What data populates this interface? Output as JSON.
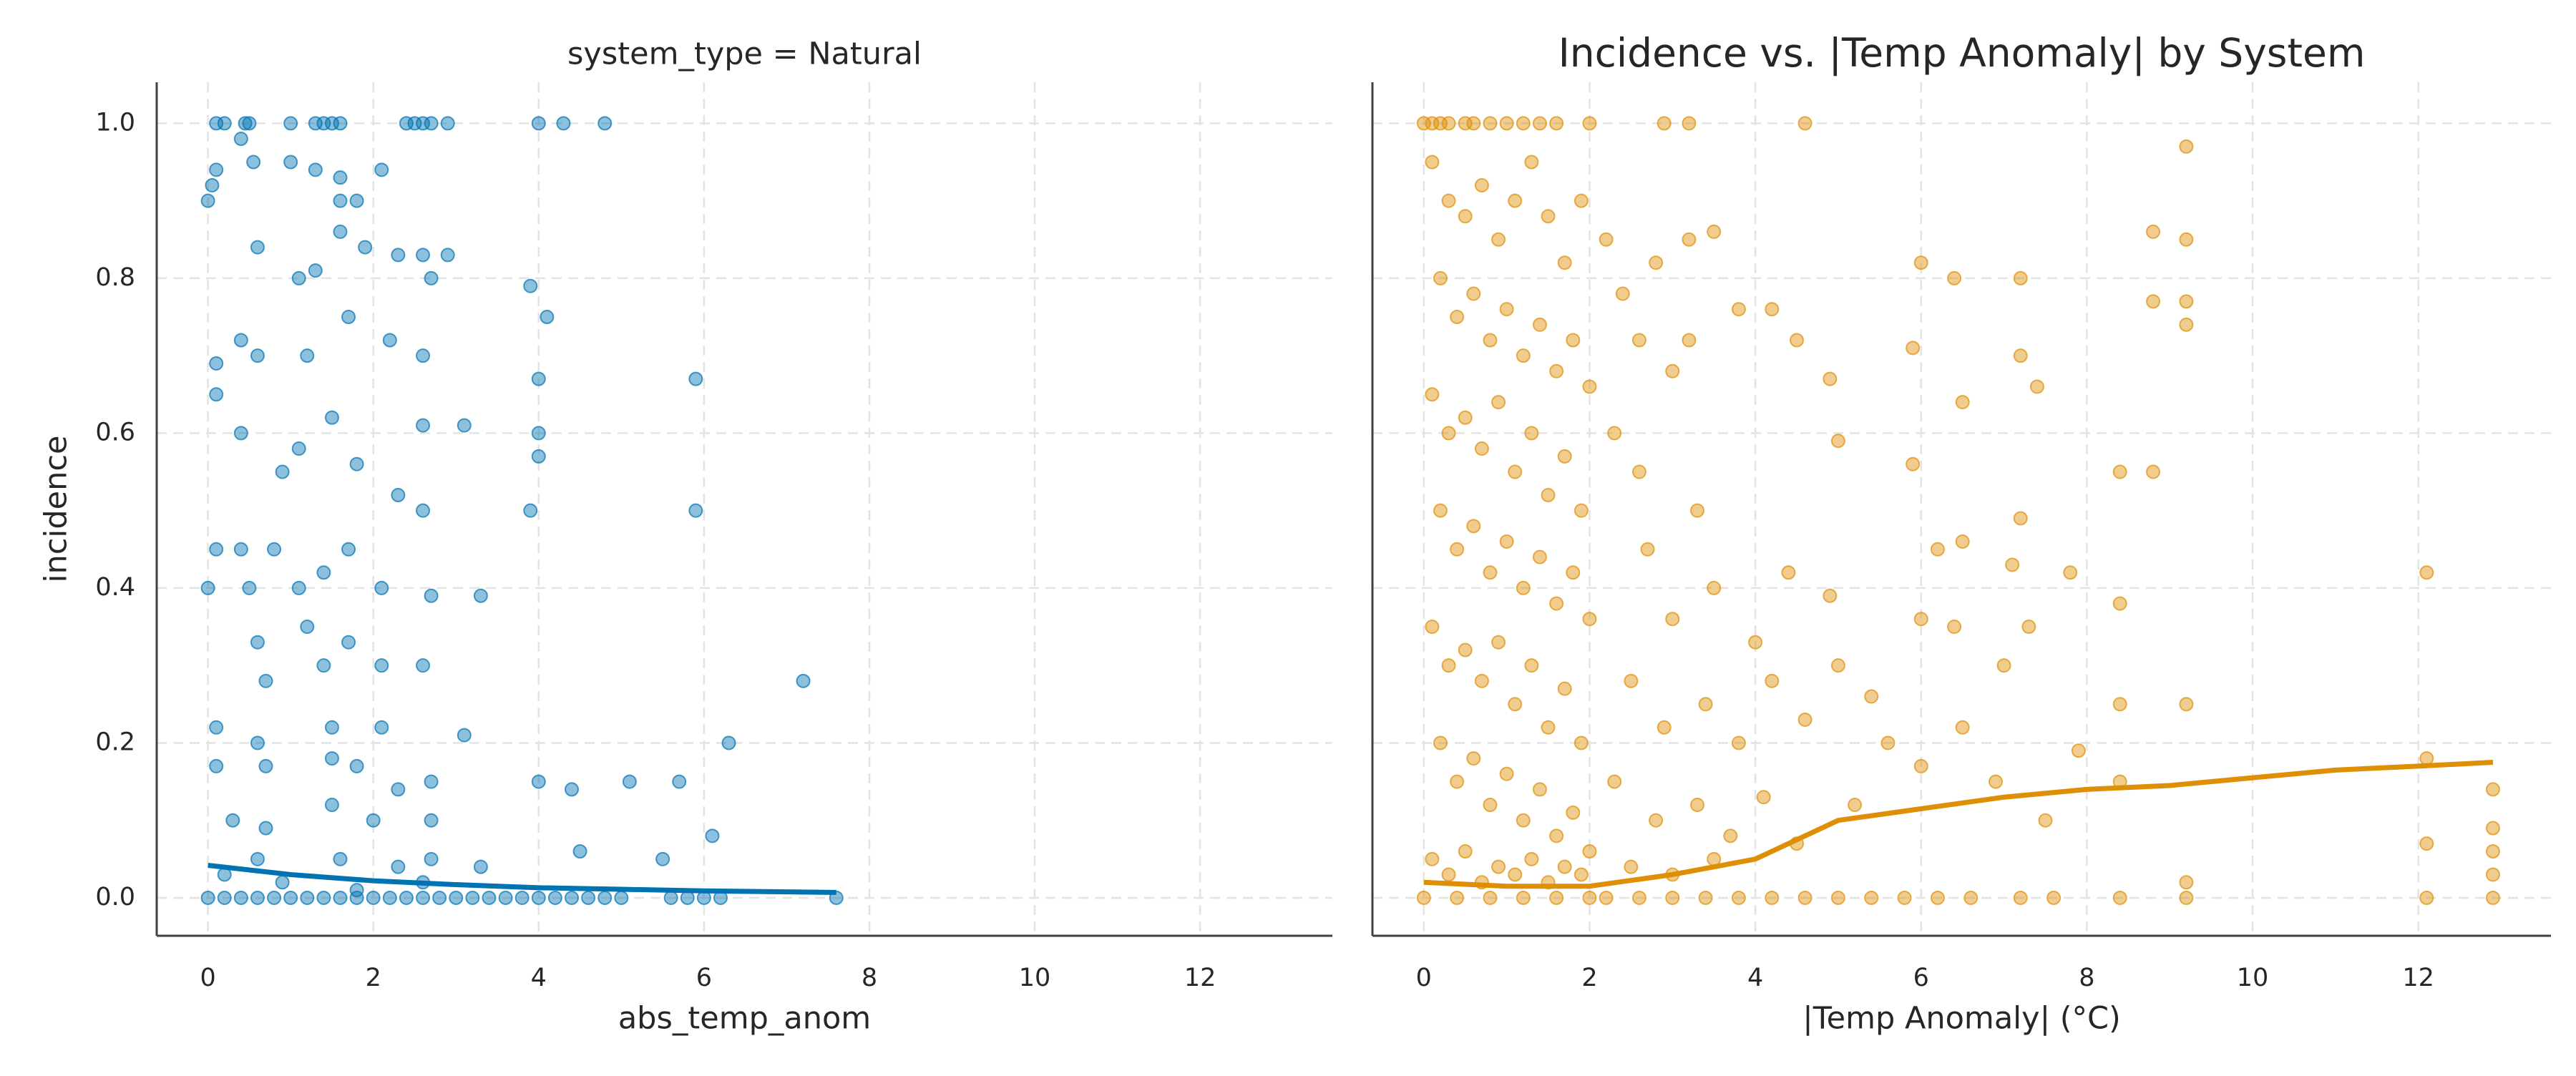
{
  "chart_data": [
    {
      "type": "scatter",
      "title": "system_type = Natural",
      "x_label": "abs_temp_anom",
      "y_label": "incidence",
      "xlim": [
        -0.62,
        13.6
      ],
      "ylim": [
        -0.049,
        1.053
      ],
      "xticks": [
        0,
        2,
        4,
        6,
        8,
        10,
        12
      ],
      "yticks": [
        {
          "value": 0,
          "label": "0.0"
        },
        {
          "value": 0.2,
          "label": "0.2"
        },
        {
          "value": 0.4,
          "label": "0.4"
        },
        {
          "value": 0.6,
          "label": "0.6"
        },
        {
          "value": 0.8,
          "label": "0.8"
        },
        {
          "value": 1,
          "label": "1.0"
        }
      ],
      "grid": true,
      "ytick_labels": true,
      "series": [
        {
          "type": "scatter",
          "color": "#0173b2",
          "x": [
            0.1,
            0.2,
            0.45,
            0.5,
            1.0,
            1.3,
            1.4,
            1.5,
            1.6,
            2.4,
            2.5,
            2.6,
            2.7,
            2.9,
            4.0,
            4.3,
            4.8,
            0,
            0.1,
            0.05,
            0.4,
            0.55,
            1.0,
            1.3,
            1.6,
            2.1,
            1.6,
            1.8,
            0.6,
            1.6,
            1.9,
            2.3,
            2.6,
            2.9,
            2.7,
            1.1,
            1.3,
            3.9,
            0.1,
            0.1,
            0.4,
            0.6,
            1.2,
            1.7,
            2.2,
            2.6,
            4.1,
            4.0,
            5.9,
            0.9,
            1.1,
            1.5,
            1.8,
            2.6,
            3.1,
            4.0,
            4.0,
            0.4,
            0.1,
            0.4,
            0.8,
            1.4,
            1.7,
            2.3,
            2.6,
            3.9,
            5.9,
            0,
            0.5,
            1.1,
            2.1,
            2.7,
            3.3,
            0.6,
            1.2,
            1.7,
            2.6,
            0.7,
            1.4,
            2.1,
            7.2,
            0.1,
            0.6,
            1.5,
            2.1,
            3.1,
            0.1,
            0.7,
            1.5,
            1.8,
            2.3,
            2.7,
            4.0,
            4.4,
            5.1,
            5.7,
            6.3,
            0.3,
            0.7,
            1.5,
            2.0,
            2.7,
            0.6,
            1.6,
            2.3,
            2.7,
            3.3,
            4.5,
            5.5,
            6.1,
            0.2,
            0.9,
            1.8,
            2.6,
            0,
            0.2,
            0.4,
            0.6,
            0.8,
            1.0,
            1.2,
            1.4,
            1.6,
            1.8,
            2.0,
            2.2,
            2.4,
            2.6,
            2.8,
            3.0,
            3.2,
            3.4,
            3.6,
            3.8,
            4.0,
            4.2,
            4.4,
            4.6,
            4.8,
            5.0,
            5.6,
            5.8,
            6.0,
            6.2,
            7.6
          ],
          "values": [
            1,
            1,
            1,
            1,
            1,
            1,
            1,
            1,
            1,
            1,
            1,
            1,
            1,
            1,
            1,
            1,
            1,
            0.9,
            0.94,
            0.92,
            0.98,
            0.95,
            0.95,
            0.94,
            0.93,
            0.94,
            0.9,
            0.9,
            0.84,
            0.86,
            0.84,
            0.83,
            0.83,
            0.83,
            0.8,
            0.8,
            0.81,
            0.79,
            0.69,
            0.65,
            0.72,
            0.7,
            0.7,
            0.75,
            0.72,
            0.7,
            0.75,
            0.67,
            0.67,
            0.55,
            0.58,
            0.62,
            0.56,
            0.61,
            0.61,
            0.6,
            0.57,
            0.6,
            0.45,
            0.45,
            0.45,
            0.42,
            0.45,
            0.52,
            0.5,
            0.5,
            0.5,
            0.4,
            0.4,
            0.4,
            0.4,
            0.39,
            0.39,
            0.33,
            0.35,
            0.33,
            0.3,
            0.28,
            0.3,
            0.3,
            0.28,
            0.22,
            0.2,
            0.22,
            0.22,
            0.21,
            0.17,
            0.17,
            0.18,
            0.17,
            0.14,
            0.15,
            0.15,
            0.14,
            0.15,
            0.15,
            0.2,
            0.1,
            0.09,
            0.12,
            0.1,
            0.1,
            0.05,
            0.05,
            0.04,
            0.05,
            0.04,
            0.06,
            0.05,
            0.08,
            0.03,
            0.02,
            0.01,
            0.02,
            0,
            0,
            0,
            0,
            0,
            0,
            0,
            0,
            0,
            0,
            0,
            0,
            0,
            0,
            0,
            0,
            0,
            0,
            0,
            0,
            0,
            0,
            0,
            0,
            0,
            0,
            0,
            0,
            0,
            0,
            0
          ]
        },
        {
          "type": "line",
          "color": "#0173b2",
          "x": [
            0,
            1,
            2,
            3,
            4,
            5,
            6,
            7.6
          ],
          "values": [
            0.042,
            0.03,
            0.022,
            0.017,
            0.013,
            0.011,
            0.009,
            0.007
          ]
        }
      ]
    },
    {
      "type": "scatter",
      "title": "Incidence vs. |Temp Anomaly| by System",
      "x_label": "|Temp Anomaly| (°C)",
      "xlim": [
        -0.62,
        13.6
      ],
      "ylim": [
        -0.049,
        1.053
      ],
      "xticks": [
        0,
        2,
        4,
        6,
        8,
        10,
        12
      ],
      "yticks": [
        0,
        0.2,
        0.4,
        0.6,
        0.8,
        1
      ],
      "grid": true,
      "ytick_labels": false,
      "series": [
        {
          "type": "scatter",
          "color": "#de8f05",
          "x": [
            0,
            0.1,
            0.2,
            0.3,
            0.5,
            0.6,
            0.8,
            1.0,
            1.2,
            1.4,
            1.6,
            2.0,
            2.9,
            3.2,
            4.6,
            0.1,
            0.3,
            0.5,
            0.7,
            0.9,
            1.1,
            1.3,
            1.5,
            1.7,
            1.9,
            0.2,
            0.4,
            0.6,
            0.8,
            1.0,
            1.2,
            1.4,
            1.6,
            1.8,
            2.0,
            0.1,
            0.3,
            0.5,
            0.7,
            0.9,
            1.1,
            1.3,
            1.5,
            1.7,
            1.9,
            0.2,
            0.4,
            0.6,
            0.8,
            1.0,
            1.2,
            1.4,
            1.6,
            1.8,
            2.0,
            0.1,
            0.3,
            0.5,
            0.7,
            0.9,
            1.1,
            1.3,
            1.5,
            1.7,
            1.9,
            0.2,
            0.4,
            0.6,
            0.8,
            1.0,
            1.2,
            1.4,
            1.6,
            1.8,
            2.0,
            0.1,
            0.3,
            0.5,
            0.7,
            0.9,
            1.1,
            1.3,
            1.5,
            1.7,
            1.9,
            2.2,
            2.4,
            2.6,
            2.8,
            3.2,
            3.5,
            3.2,
            3.0,
            3.8,
            4.2,
            4.5,
            4.9,
            2.3,
            2.6,
            3.3,
            2.7,
            3.5,
            3.0,
            4.0,
            4.4,
            4.9,
            2.5,
            2.9,
            3.4,
            3.8,
            4.2,
            4.6,
            5.0,
            2.3,
            2.8,
            3.3,
            3.7,
            4.1,
            4.5,
            2.5,
            3.0,
            3.5,
            5.0,
            5.9,
            6.0,
            6.4,
            6.5,
            7.2,
            7.2,
            7.4,
            5.9,
            6.2,
            6.5,
            7.1,
            7.2,
            7.8,
            5.4,
            6.0,
            6.4,
            7.0,
            7.3,
            5.2,
            5.6,
            6.0,
            6.5,
            6.9,
            7.5,
            7.9,
            8.4,
            8.4,
            8.8,
            8.8,
            8.8,
            8.4,
            8.4,
            9.2,
            9.2,
            9.2,
            9.2,
            9.2,
            9.2,
            12.1,
            12.1,
            12.1,
            12.9,
            12.9,
            12.9,
            12.9,
            2.2,
            2.6,
            3.0,
            3.4,
            3.8,
            4.2,
            4.6,
            5.0,
            5.4,
            5.8,
            6.2,
            6.6,
            7.2,
            7.6,
            8.4,
            9.2,
            12.1,
            12.9,
            0,
            0.4,
            0.8,
            1.2,
            1.6,
            2.0
          ],
          "values": [
            1,
            1,
            1,
            1,
            1,
            1,
            1,
            1,
            1,
            1,
            1,
            1,
            1,
            1,
            1,
            0.95,
            0.9,
            0.88,
            0.92,
            0.85,
            0.9,
            0.95,
            0.88,
            0.82,
            0.9,
            0.8,
            0.75,
            0.78,
            0.72,
            0.76,
            0.7,
            0.74,
            0.68,
            0.72,
            0.66,
            0.65,
            0.6,
            0.62,
            0.58,
            0.64,
            0.55,
            0.6,
            0.52,
            0.57,
            0.5,
            0.5,
            0.45,
            0.48,
            0.42,
            0.46,
            0.4,
            0.44,
            0.38,
            0.42,
            0.36,
            0.35,
            0.3,
            0.32,
            0.28,
            0.33,
            0.25,
            0.3,
            0.22,
            0.27,
            0.2,
            0.2,
            0.15,
            0.18,
            0.12,
            0.16,
            0.1,
            0.14,
            0.08,
            0.11,
            0.06,
            0.05,
            0.03,
            0.06,
            0.02,
            0.04,
            0.03,
            0.05,
            0.02,
            0.04,
            0.03,
            0.85,
            0.78,
            0.72,
            0.82,
            0.85,
            0.86,
            0.72,
            0.68,
            0.76,
            0.76,
            0.72,
            0.67,
            0.6,
            0.55,
            0.5,
            0.45,
            0.4,
            0.36,
            0.33,
            0.42,
            0.39,
            0.28,
            0.22,
            0.25,
            0.2,
            0.28,
            0.23,
            0.3,
            0.15,
            0.1,
            0.12,
            0.08,
            0.13,
            0.07,
            0.04,
            0.03,
            0.05,
            0.59,
            0.71,
            0.82,
            0.8,
            0.64,
            0.8,
            0.7,
            0.66,
            0.56,
            0.45,
            0.46,
            0.43,
            0.49,
            0.42,
            0.26,
            0.36,
            0.35,
            0.3,
            0.35,
            0.12,
            0.2,
            0.17,
            0.22,
            0.15,
            0.1,
            0.19,
            0.38,
            0.55,
            0.55,
            0.77,
            0.86,
            0.25,
            0.15,
            0.97,
            0.85,
            0.77,
            0.74,
            0.25,
            0.02,
            0.42,
            0.18,
            0.07,
            0.14,
            0.09,
            0.06,
            0.03,
            0,
            0,
            0,
            0,
            0,
            0,
            0,
            0,
            0,
            0,
            0,
            0,
            0,
            0,
            0,
            0,
            0,
            0,
            0,
            0,
            0,
            0,
            0,
            0
          ]
        },
        {
          "type": "line",
          "color": "#de8f05",
          "x": [
            0,
            1,
            2,
            3,
            4,
            5,
            6,
            7,
            8,
            9,
            10,
            11,
            12,
            12.9
          ],
          "values": [
            0.02,
            0.015,
            0.015,
            0.03,
            0.05,
            0.1,
            0.115,
            0.13,
            0.14,
            0.145,
            0.155,
            0.165,
            0.17,
            0.175
          ]
        }
      ]
    }
  ]
}
